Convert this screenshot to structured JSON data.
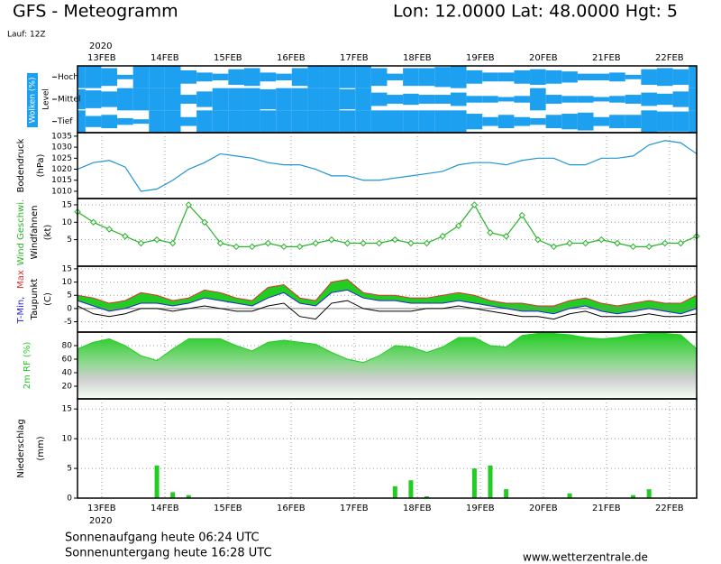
{
  "header": {
    "title": "GFS - Meteogramm",
    "location": "Lon: 12.0000 Lat: 48.0000 Hgt: 5",
    "run": "Lauf: 12Z"
  },
  "date_axis": {
    "year": "2020",
    "labels": [
      "13FEB",
      "14FEB",
      "15FEB",
      "16FEB",
      "17FEB",
      "18FEB",
      "19FEB",
      "20FEB",
      "21FEB",
      "22FEB"
    ]
  },
  "chart_data": [
    {
      "type": "clouds",
      "ylabel": "Wolken (%)",
      "ylabel2": "Level",
      "level_labels": [
        "Hoch",
        "Mittel",
        "Tief"
      ],
      "color": "#1ea0f0",
      "series": [
        {
          "name": "Hoch",
          "values": [
            100,
            100,
            80,
            20,
            100,
            100,
            100,
            60,
            40,
            30,
            70,
            80,
            40,
            30,
            80,
            100,
            100,
            100,
            100,
            80,
            30,
            80,
            80,
            90,
            100,
            60,
            40,
            40,
            60,
            70,
            60,
            50,
            30,
            30,
            40,
            20,
            70,
            80,
            70,
            100
          ]
        },
        {
          "name": "Mittel",
          "values": [
            90,
            80,
            70,
            100,
            100,
            100,
            100,
            40,
            70,
            100,
            100,
            100,
            90,
            100,
            100,
            100,
            100,
            90,
            100,
            60,
            40,
            50,
            40,
            40,
            60,
            30,
            30,
            20,
            30,
            100,
            40,
            30,
            30,
            20,
            30,
            40,
            60,
            50,
            70,
            100
          ]
        },
        {
          "name": "Tief",
          "values": [
            100,
            50,
            60,
            30,
            20,
            100,
            100,
            40,
            100,
            100,
            100,
            100,
            100,
            100,
            100,
            100,
            100,
            100,
            100,
            100,
            100,
            100,
            100,
            100,
            100,
            70,
            40,
            60,
            40,
            30,
            60,
            70,
            80,
            40,
            60,
            60,
            100,
            90,
            90,
            100
          ]
        }
      ]
    },
    {
      "type": "line",
      "ylabel": "Bodendruck",
      "ylabel2": "(hPa)",
      "color": "#1e96d2",
      "ylim": [
        1006.7,
        1036.6
      ],
      "yticks": [
        1010,
        1015,
        1020,
        1025,
        1030,
        1035
      ],
      "grid": false,
      "values": [
        1020,
        1023,
        1024,
        1021,
        1010,
        1011,
        1015,
        1020,
        1023,
        1027,
        1026,
        1025,
        1023,
        1022,
        1022,
        1020,
        1017,
        1017,
        1015,
        1015,
        1016,
        1017,
        1018,
        1019,
        1022,
        1023,
        1023,
        1022,
        1024,
        1025,
        1025,
        1022,
        1022,
        1025,
        1025,
        1026,
        1031,
        1033,
        1032,
        1027
      ]
    },
    {
      "type": "line",
      "ylabel": "Wind Geschwi.",
      "ylabel2": "Windfahnen",
      "ylabel3": "(kt)",
      "color": "#28b428",
      "markers": true,
      "ylim": [
        -2.6,
        16.8
      ],
      "yticks": [
        5,
        10,
        15
      ],
      "grid": true,
      "values": [
        13,
        10,
        8,
        6,
        4,
        5,
        4,
        15,
        10,
        4,
        3,
        3,
        4,
        3,
        3,
        4,
        5,
        4,
        4,
        4,
        5,
        4,
        4,
        6,
        9,
        15,
        7,
        6,
        12,
        5,
        3,
        4,
        4,
        5,
        4,
        3,
        3,
        4,
        4,
        6
      ]
    },
    {
      "type": "temps",
      "ylabel": "T-Min,",
      "ylabel_max": "Max",
      "ylabel2": "Taupunkt",
      "ylabel3": "(C)",
      "band_color": "#22cc22",
      "ylim": [
        -8.9,
        16
      ],
      "yticks": [
        -5,
        0,
        5,
        10,
        15
      ],
      "grid": true,
      "series": [
        {
          "name": "Max",
          "color": "#e03030",
          "values": [
            5,
            4,
            2,
            3,
            6,
            5,
            3,
            4,
            7,
            6,
            4,
            3,
            8,
            9,
            4,
            3,
            10,
            11,
            6,
            5,
            5,
            4,
            4,
            5,
            6,
            5,
            3,
            2,
            2,
            1,
            1,
            3,
            4,
            2,
            1,
            2,
            3,
            2,
            2,
            5
          ]
        },
        {
          "name": "T-Min",
          "color": "#2020e0",
          "values": [
            3,
            1,
            -1,
            0,
            2,
            2,
            1,
            2,
            4,
            3,
            2,
            1,
            4,
            6,
            2,
            1,
            6,
            7,
            4,
            3,
            3,
            2,
            2,
            2,
            3,
            2,
            1,
            0,
            -1,
            -1,
            -2,
            0,
            1,
            -1,
            -2,
            -1,
            0,
            -1,
            -2,
            0
          ]
        },
        {
          "name": "Taupunkt",
          "color": "#000000",
          "values": [
            1,
            -2,
            -3,
            -2,
            0,
            0,
            -1,
            0,
            1,
            0,
            -1,
            -1,
            1,
            2,
            -3,
            -4,
            2,
            3,
            0,
            -1,
            -1,
            -1,
            0,
            0,
            1,
            0,
            -1,
            -2,
            -3,
            -3,
            -4,
            -2,
            -1,
            -3,
            -3,
            -3,
            -2,
            -3,
            -3,
            -2
          ]
        }
      ]
    },
    {
      "type": "area",
      "ylabel": "2m RF (%)",
      "color": "#22cc22",
      "ylim": [
        1.3,
        100
      ],
      "yticks": [
        20,
        40,
        60,
        80
      ],
      "grid": true,
      "values": [
        75,
        85,
        90,
        80,
        65,
        58,
        75,
        90,
        90,
        90,
        80,
        72,
        85,
        88,
        85,
        82,
        70,
        60,
        55,
        65,
        80,
        78,
        70,
        78,
        92,
        92,
        80,
        78,
        95,
        98,
        98,
        96,
        92,
        90,
        92,
        96,
        98,
        98,
        96,
        75
      ]
    },
    {
      "type": "bar",
      "ylabel": "Niederschlag",
      "ylabel2": "(mm)",
      "color": "#22cc22",
      "ylim": [
        0,
        16.7
      ],
      "yticks": [
        0,
        5,
        10,
        15
      ],
      "grid": true,
      "values": [
        0,
        0,
        0,
        0,
        0,
        5.5,
        1,
        0.5,
        0,
        0,
        0,
        0,
        0,
        0,
        0,
        0,
        0,
        0,
        0,
        0,
        2,
        3,
        0.3,
        0,
        0,
        5,
        5.5,
        1.5,
        0,
        0,
        0,
        0.8,
        0,
        0,
        0,
        0.5,
        1.5,
        0,
        0,
        0
      ]
    }
  ],
  "footer": {
    "sunrise": "Sonnenaufgang heute 06:24 UTC",
    "sunset": "Sonnenuntergang heute 16:28 UTC",
    "site": "www.wetterzentrale.de"
  }
}
